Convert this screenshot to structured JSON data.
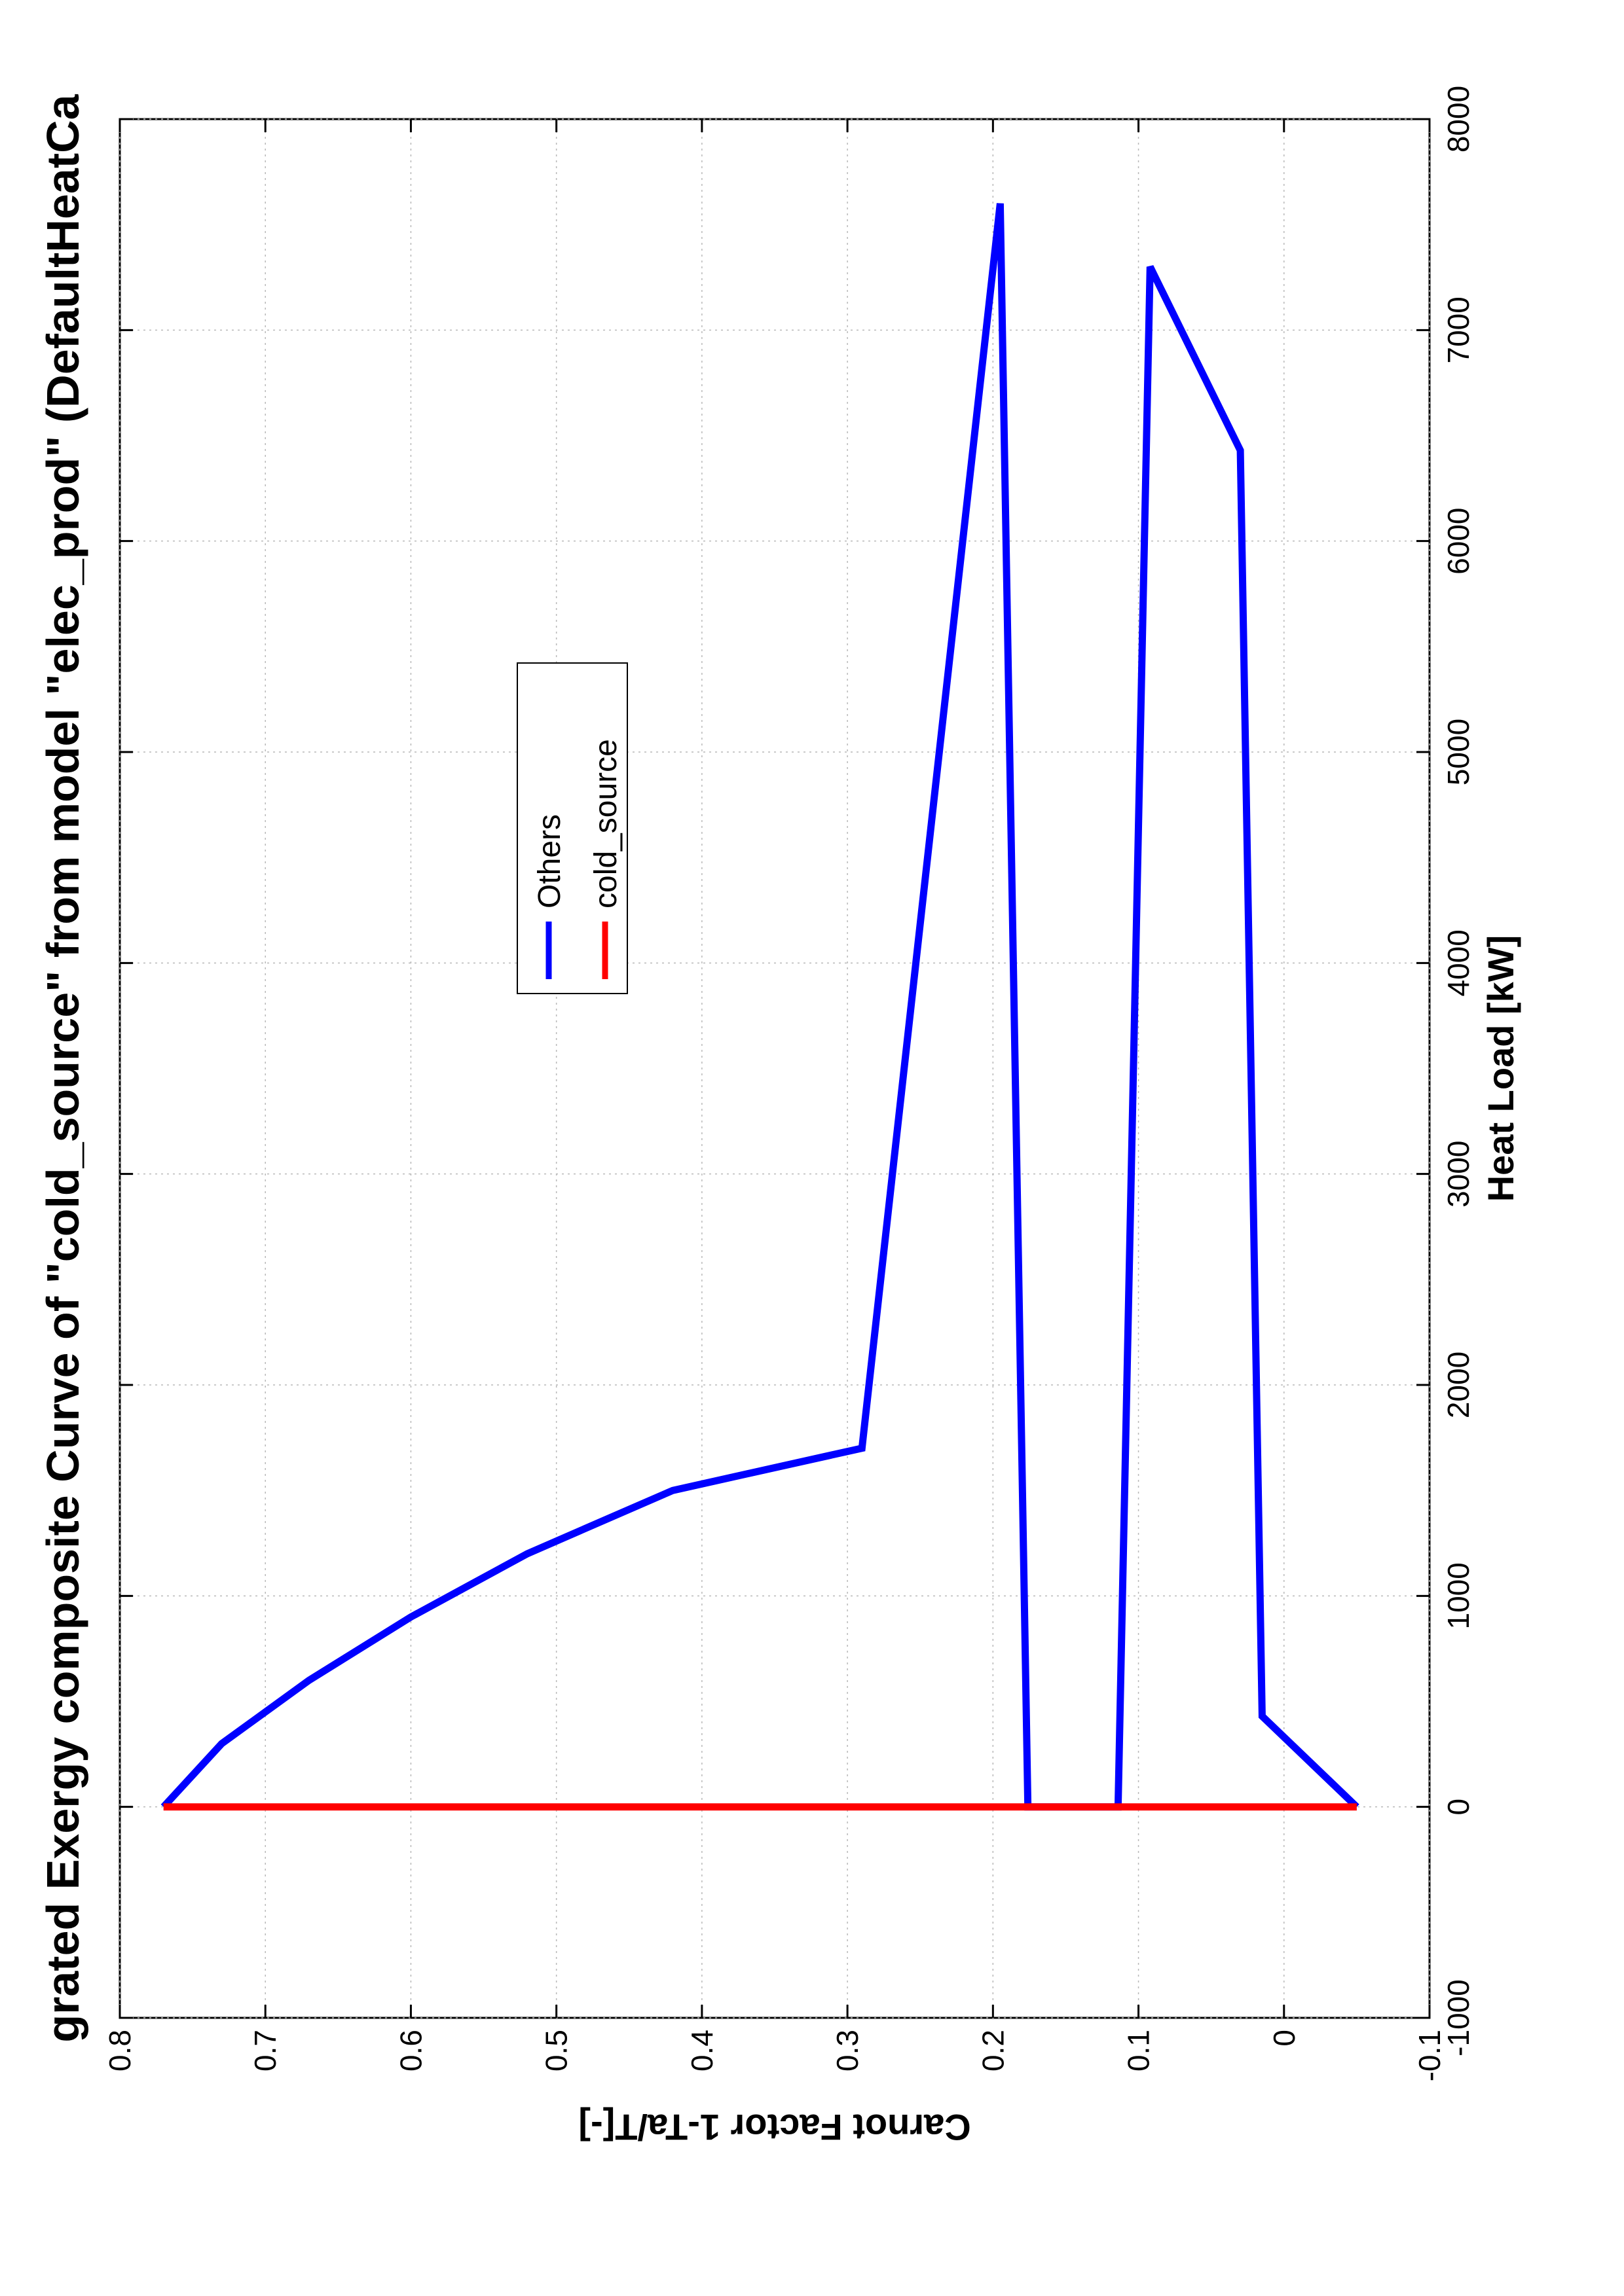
{
  "chart_data": {
    "type": "line",
    "title": "Integrated Exergy composite Curve of \"cold_source\" from model \"elec_prod\" (DefaultHeatCascade)",
    "title_visible": "grated Exergy composite Curve of \"cold_source\" from model \"elec_prod\" (DefaultHeatCa",
    "xlabel": "Heat Load [kW]",
    "ylabel": "Carnot Factor 1-Ta/T[-]",
    "xlim": [
      -1000,
      8000
    ],
    "ylim": [
      -0.1,
      0.8
    ],
    "xticks": [
      -1000,
      0,
      1000,
      2000,
      3000,
      4000,
      5000,
      6000,
      7000,
      8000
    ],
    "xtick_labels": [
      "-1000",
      "0",
      "1000",
      "2000",
      "3000",
      "4000",
      "5000",
      "6000",
      "7000",
      "8000"
    ],
    "yticks": [
      -0.1,
      0,
      0.1,
      0.2,
      0.3,
      0.4,
      0.5,
      0.6,
      0.7,
      0.8
    ],
    "ytick_labels": [
      "-0.1",
      "0",
      "0.1",
      "0.2",
      "0.3",
      "0.4",
      "0.5",
      "0.6",
      "0.7",
      "0.8"
    ],
    "grid": true,
    "orientation": "rotated 90 degrees counter-clockwise",
    "legend": {
      "placement": "top-right",
      "entries": [
        "Others",
        "cold_source"
      ]
    },
    "series": [
      {
        "name": "Others",
        "color": "#0000ff",
        "x": [
          0,
          300,
          600,
          900,
          1200,
          1500,
          1700,
          7600,
          0,
          0,
          7300,
          6430,
          430,
          0
        ],
        "y": [
          0.77,
          0.73,
          0.67,
          0.6,
          0.52,
          0.42,
          0.29,
          0.195,
          0.176,
          0.114,
          0.092,
          0.03,
          0.015,
          -0.05
        ]
      },
      {
        "name": "cold_source",
        "color": "#ff0000",
        "x": [
          0,
          0
        ],
        "y": [
          0.77,
          -0.05
        ]
      }
    ]
  }
}
